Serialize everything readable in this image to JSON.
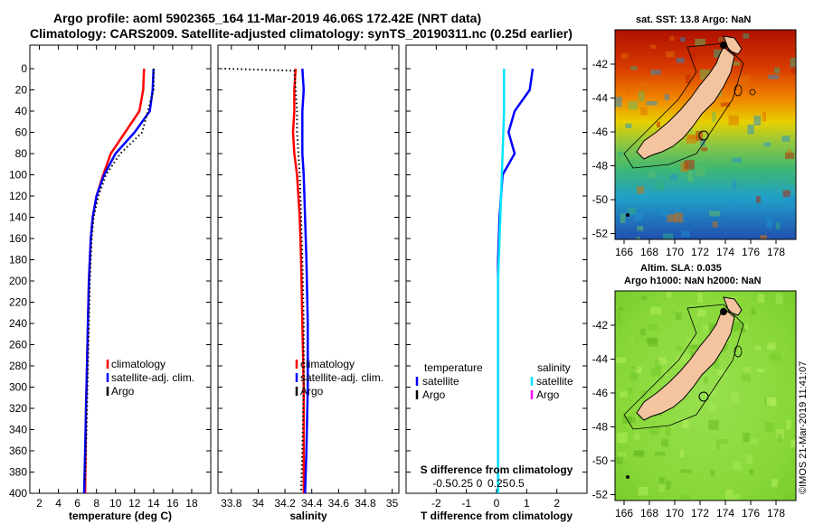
{
  "header": {
    "line1": "Argo profile: aoml 5902365_164 11-Mar-2019 46.06S 172.42E (NRT data)",
    "line2": "Climatology: CARS2009. Satellite-adjusted climatology: synTS_20190311.nc (0.25d earlier)"
  },
  "colors": {
    "climatology": "#ff0000",
    "satellite": "#0000ff",
    "argo": "#000000",
    "sal_satellite": "#00e5ff",
    "sal_argo": "#ff00ff",
    "land": "#f4c4a0"
  },
  "chart_data": [
    {
      "type": "line",
      "id": "temperature",
      "xlabel": "temperature (deg C)",
      "ylabel": "",
      "xlim": [
        1,
        20
      ],
      "ylim": [
        400,
        0
      ],
      "xticks": [
        2,
        4,
        6,
        8,
        10,
        12,
        14,
        16,
        18
      ],
      "yticks": [
        0,
        20,
        40,
        60,
        80,
        100,
        120,
        140,
        160,
        180,
        200,
        220,
        240,
        260,
        280,
        300,
        320,
        340,
        360,
        380,
        400
      ],
      "legend": [
        "climatology",
        "satellite-adj. clim.",
        "Argo"
      ],
      "series": [
        {
          "name": "climatology",
          "color": "#ff0000",
          "points": [
            [
              13.0,
              0
            ],
            [
              12.9,
              20
            ],
            [
              12.5,
              40
            ],
            [
              11.0,
              60
            ],
            [
              9.5,
              80
            ],
            [
              8.7,
              100
            ],
            [
              8.0,
              120
            ],
            [
              7.6,
              140
            ],
            [
              7.4,
              160
            ],
            [
              7.3,
              180
            ],
            [
              7.2,
              200
            ],
            [
              7.1,
              240
            ],
            [
              7.0,
              280
            ],
            [
              6.9,
              320
            ],
            [
              6.85,
              360
            ],
            [
              6.8,
              400
            ]
          ]
        },
        {
          "name": "satellite-adj. clim.",
          "color": "#0000ff",
          "points": [
            [
              14.0,
              0
            ],
            [
              13.9,
              20
            ],
            [
              13.6,
              40
            ],
            [
              12.0,
              60
            ],
            [
              10.0,
              80
            ],
            [
              8.8,
              100
            ],
            [
              8.0,
              120
            ],
            [
              7.6,
              140
            ],
            [
              7.4,
              160
            ],
            [
              7.3,
              180
            ],
            [
              7.2,
              200
            ],
            [
              7.1,
              240
            ],
            [
              7.0,
              280
            ],
            [
              6.9,
              320
            ],
            [
              6.8,
              360
            ],
            [
              6.7,
              400
            ]
          ]
        },
        {
          "name": "Argo",
          "color": "#000000",
          "style": "dotted",
          "points": [
            [
              14.0,
              0
            ],
            [
              14.0,
              20
            ],
            [
              13.4,
              40
            ],
            [
              12.8,
              60
            ],
            [
              10.5,
              80
            ],
            [
              9.0,
              100
            ],
            [
              8.2,
              120
            ],
            [
              7.7,
              140
            ],
            [
              7.5,
              160
            ],
            [
              7.4,
              180
            ],
            [
              7.3,
              200
            ],
            [
              7.2,
              240
            ],
            [
              7.1,
              280
            ],
            [
              7.0,
              320
            ],
            [
              6.9,
              360
            ],
            [
              6.8,
              390
            ]
          ]
        }
      ]
    },
    {
      "type": "line",
      "id": "salinity",
      "xlabel": "salinity",
      "xlim": [
        33.7,
        35.05
      ],
      "ylim": [
        400,
        0
      ],
      "xticks": [
        33.8,
        34,
        34.2,
        34.4,
        34.6,
        34.8,
        35
      ],
      "xtick_labels": [
        "33.8",
        "34",
        "34.2",
        "34.4",
        "34.6",
        "34.8",
        "35"
      ],
      "legend": [
        "climatology",
        "satellite-adj. clim.",
        "Argo"
      ],
      "series": [
        {
          "name": "climatology",
          "color": "#ff0000",
          "points": [
            [
              34.28,
              0
            ],
            [
              34.27,
              20
            ],
            [
              34.27,
              40
            ],
            [
              34.26,
              60
            ],
            [
              34.27,
              80
            ],
            [
              34.29,
              100
            ],
            [
              34.31,
              140
            ],
            [
              34.32,
              180
            ],
            [
              34.33,
              240
            ],
            [
              34.34,
              300
            ],
            [
              34.34,
              360
            ],
            [
              34.34,
              400
            ]
          ]
        },
        {
          "name": "satellite-adj. clim.",
          "color": "#0000ff",
          "points": [
            [
              34.33,
              0
            ],
            [
              34.34,
              20
            ],
            [
              34.33,
              40
            ],
            [
              34.33,
              60
            ],
            [
              34.33,
              80
            ],
            [
              34.34,
              100
            ],
            [
              34.35,
              140
            ],
            [
              34.36,
              180
            ],
            [
              34.37,
              240
            ],
            [
              34.37,
              300
            ],
            [
              34.36,
              360
            ],
            [
              34.35,
              400
            ]
          ]
        },
        {
          "name": "Argo",
          "color": "#000000",
          "style": "dotted",
          "points": [
            [
              33.75,
              0
            ],
            [
              34.27,
              2
            ],
            [
              34.28,
              20
            ],
            [
              34.29,
              40
            ],
            [
              34.29,
              60
            ],
            [
              34.3,
              80
            ],
            [
              34.31,
              100
            ],
            [
              34.32,
              140
            ],
            [
              34.33,
              180
            ],
            [
              34.34,
              240
            ],
            [
              34.34,
              300
            ],
            [
              34.33,
              360
            ],
            [
              34.32,
              400
            ]
          ]
        }
      ]
    },
    {
      "type": "line",
      "id": "difference",
      "xlabel": "T difference from climatology",
      "xlabel_top": "S difference from climatology",
      "xlim": [
        -3,
        3
      ],
      "ylim": [
        400,
        0
      ],
      "xticks": [
        -2,
        -1,
        0,
        1,
        2
      ],
      "s_ticks": [
        -0.5,
        -0.25,
        0,
        0.25,
        0.5
      ],
      "s_tick_labels": [
        "-0.5",
        "-0.25",
        "0",
        "0.25",
        "0.5"
      ],
      "legend_temperature": {
        "title": "temperature",
        "items": [
          "satellite",
          "Argo"
        ]
      },
      "legend_salinity": {
        "title": "salinity",
        "items": [
          "satellite",
          "Argo"
        ]
      },
      "series": [
        {
          "name": "temperature satellite",
          "color": "#0000ff",
          "points": [
            [
              1.2,
              0
            ],
            [
              1.1,
              20
            ],
            [
              0.6,
              40
            ],
            [
              0.4,
              60
            ],
            [
              0.6,
              80
            ],
            [
              0.2,
              100
            ],
            [
              0.1,
              140
            ],
            [
              0.05,
              180
            ],
            [
              0.05,
              240
            ],
            [
              0.05,
              300
            ],
            [
              0.05,
              360
            ],
            [
              0.05,
              400
            ]
          ]
        },
        {
          "name": "salinity satellite",
          "color": "#00e5ff",
          "points": [
            [
              0.25,
              0
            ],
            [
              0.25,
              20
            ],
            [
              0.25,
              40
            ],
            [
              0.2,
              80
            ],
            [
              0.15,
              120
            ],
            [
              0.1,
              160
            ],
            [
              0.05,
              200
            ],
            [
              0.05,
              260
            ],
            [
              0.05,
              320
            ],
            [
              0.05,
              400
            ]
          ]
        }
      ]
    }
  ],
  "maps": {
    "sst": {
      "title": "sat. SST: 13.8 Argo: NaN",
      "lat_ticks": [
        "-42",
        "-44",
        "-46",
        "-48",
        "-50",
        "-52"
      ],
      "lon_ticks": [
        "166",
        "168",
        "170",
        "172",
        "174",
        "176",
        "178"
      ]
    },
    "sla": {
      "title1": "Altim. SLA: 0.035",
      "title2": "Argo h1000: NaN h2000: NaN",
      "lat_ticks": [
        "-42",
        "-44",
        "-46",
        "-48",
        "-50",
        "-52"
      ],
      "lon_ticks": [
        "166",
        "168",
        "170",
        "172",
        "174",
        "176",
        "178"
      ]
    }
  },
  "credit": "©IMOS 21-Mar-2019 11:41:07"
}
